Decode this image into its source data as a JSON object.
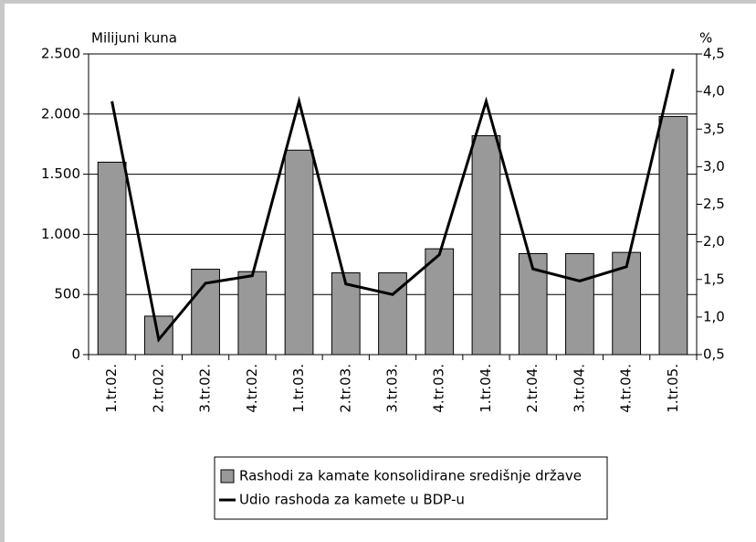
{
  "chart_data": {
    "type": "bar",
    "y_label": "Milijuni kuna",
    "y2_label": "%",
    "categories": [
      "1.tr.02.",
      "2.tr.02.",
      "3.tr.02.",
      "4.tr.02.",
      "1.tr.03.",
      "2.tr.03.",
      "3.tr.03.",
      "4.tr.03.",
      "1.tr.04.",
      "2.tr.04.",
      "3.tr.04.",
      "4.tr.04.",
      "1.tr.05."
    ],
    "series": [
      {
        "name": "Rashodi za kamate konsolidirane središnje države",
        "color": "#999999",
        "type": "bar",
        "values": [
          1600,
          320,
          710,
          690,
          1700,
          680,
          680,
          880,
          1820,
          840,
          840,
          850,
          1980
        ]
      },
      {
        "name": "Udio rashoda za kamete u BDP-u",
        "color": "#000000",
        "type": "line",
        "axis": "y2",
        "values": [
          3.87,
          0.7,
          1.45,
          1.55,
          3.87,
          1.44,
          1.3,
          1.83,
          3.87,
          1.64,
          1.48,
          1.67,
          4.3
        ]
      }
    ],
    "ylim": [
      0,
      2500
    ],
    "yticks": [
      0,
      500,
      {
        "value": 1000,
        "label": "1.000"
      },
      {
        "value": 1500,
        "label": "1.500"
      },
      {
        "value": 2000,
        "label": "2.000"
      },
      {
        "value": 2500,
        "label": "2.500"
      }
    ],
    "y2lim": [
      0.5,
      4.5
    ],
    "y2ticks": [
      {
        "value": 0.5,
        "label": "0,5"
      },
      {
        "value": 1.0,
        "label": "1,0"
      },
      {
        "value": 1.5,
        "label": "1,5"
      },
      {
        "value": 2.0,
        "label": "2,0"
      },
      {
        "value": 2.5,
        "label": "2,5"
      },
      {
        "value": 3.0,
        "label": "3,0"
      },
      {
        "value": 3.5,
        "label": "3,5"
      },
      {
        "value": 4.0,
        "label": "4,0"
      },
      {
        "value": 4.5,
        "label": "4,5"
      }
    ],
    "grid": true
  }
}
